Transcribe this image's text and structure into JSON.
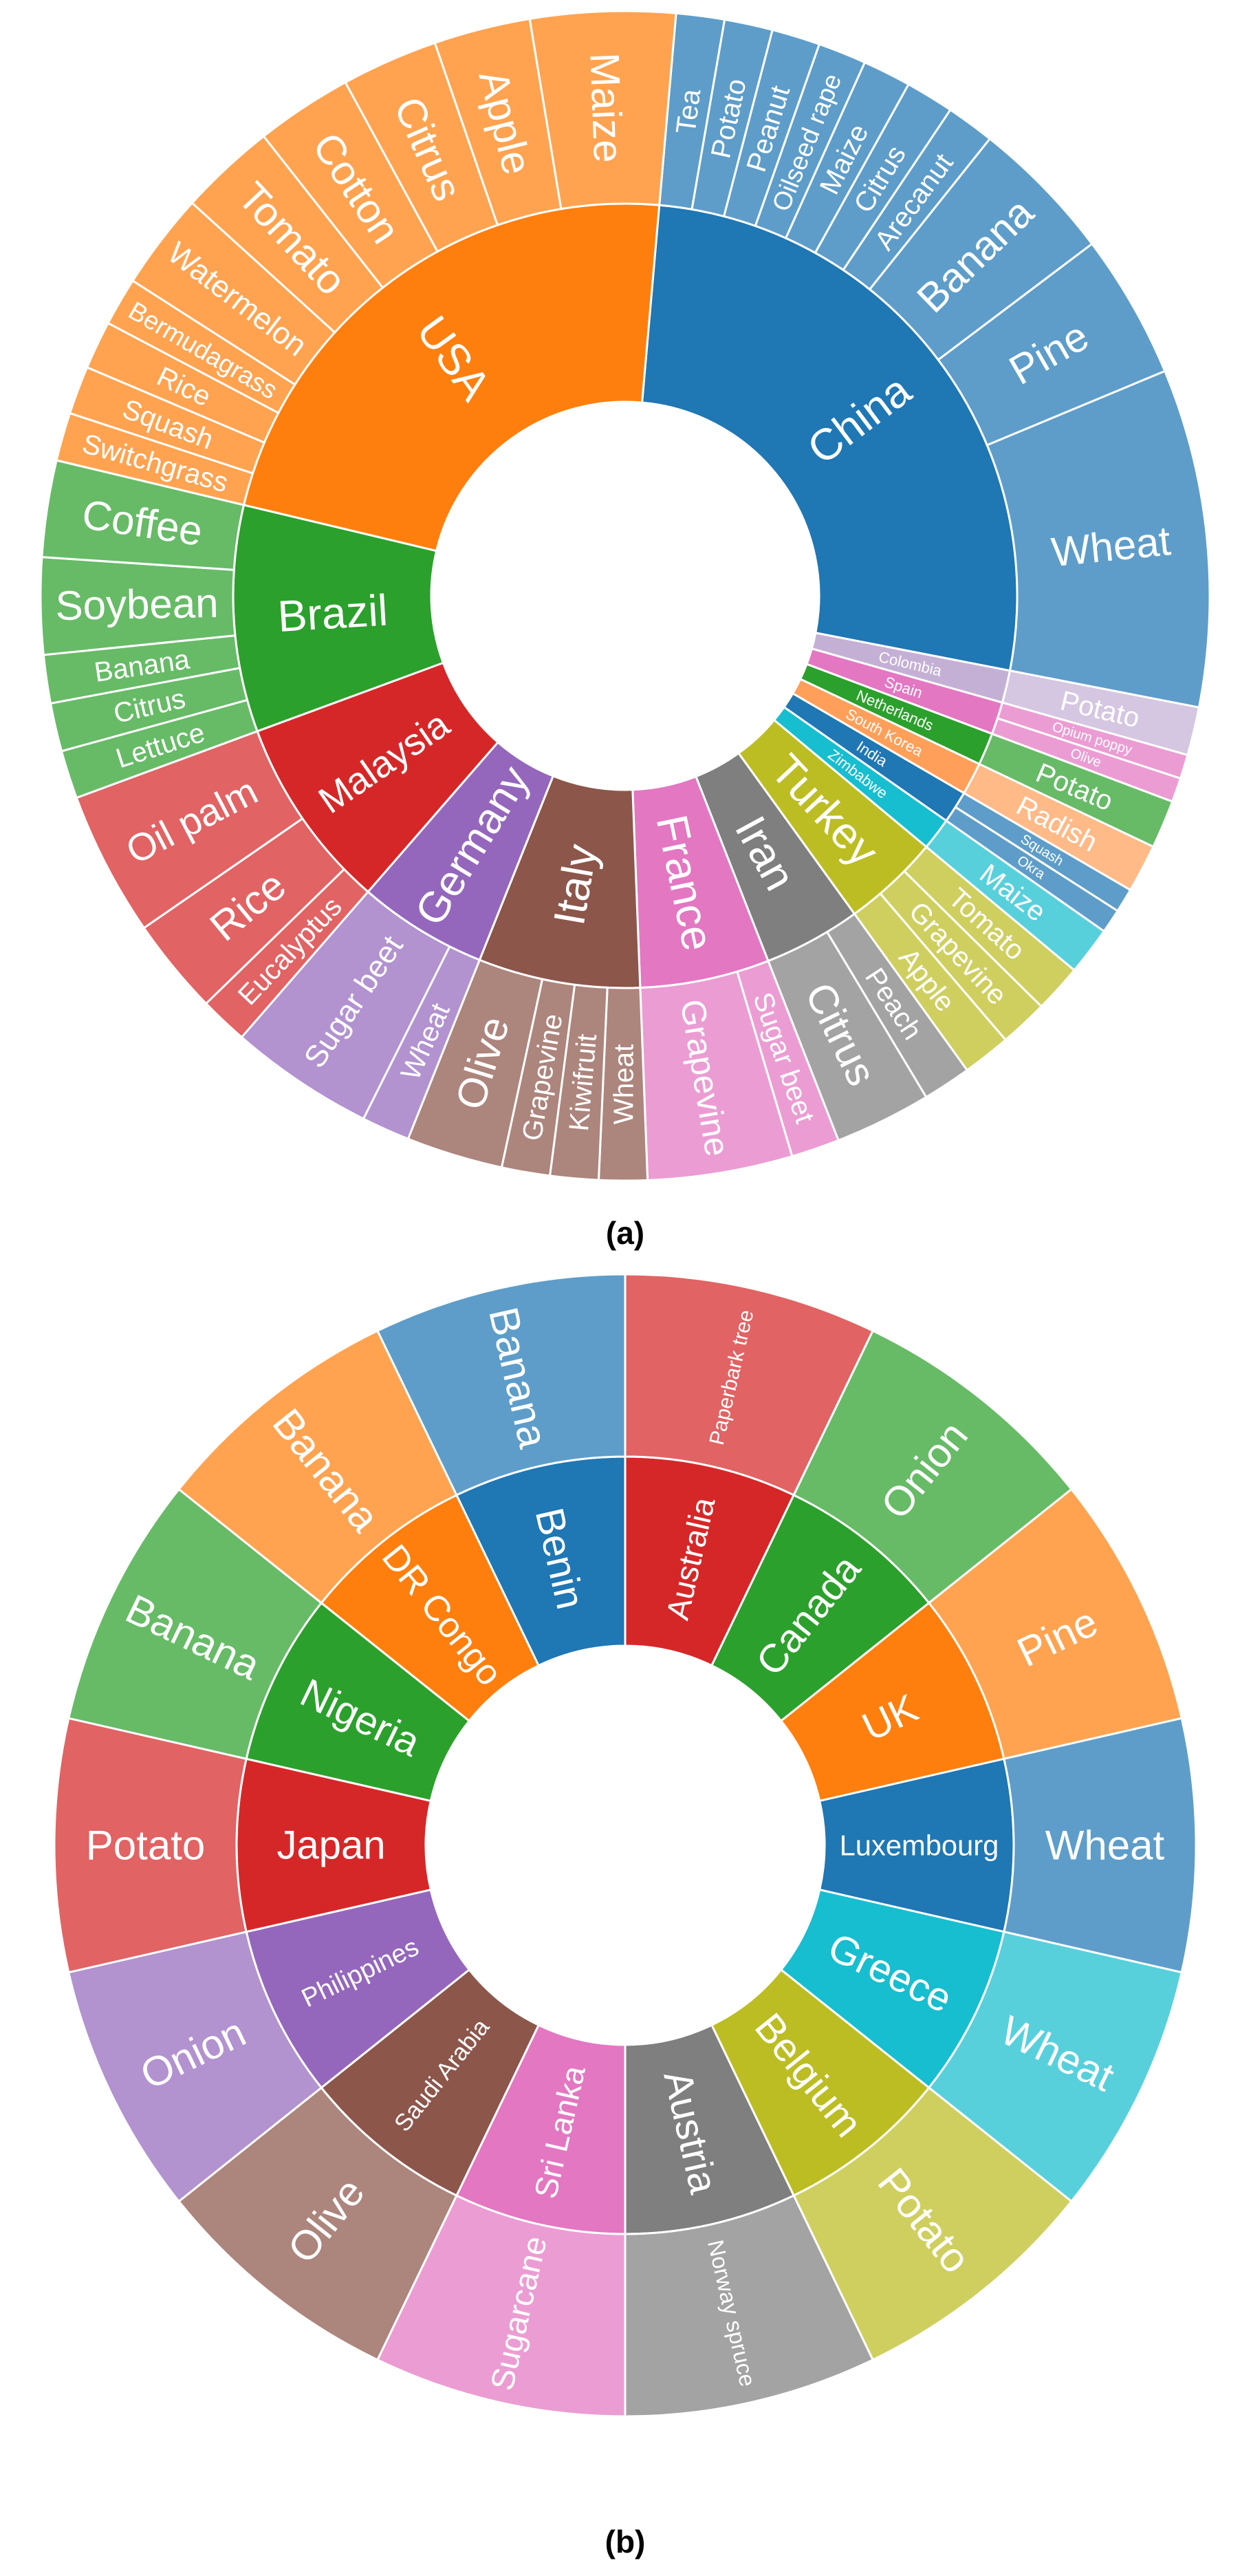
{
  "chart_data": [
    {
      "type": "sunburst",
      "panel_label": "(a)",
      "start_deg": 85,
      "countries": [
        {
          "name": "China",
          "color": "#1f77b4",
          "children": [
            {
              "name": "Tea",
              "value": 1
            },
            {
              "name": "Potato",
              "value": 1
            },
            {
              "name": "Peanut",
              "value": 1
            },
            {
              "name": "Oilseed rape",
              "value": 1
            },
            {
              "name": "Maize",
              "value": 1
            },
            {
              "name": "Citrus",
              "value": 1
            },
            {
              "name": "Arecanut",
              "value": 1
            },
            {
              "name": "Banana",
              "value": 3
            },
            {
              "name": "Pine",
              "value": 3
            },
            {
              "name": "Wheat",
              "value": 7
            }
          ]
        },
        {
          "name": "Colombia",
          "color": "#c5b0d5",
          "children": [
            {
              "name": "Potato",
              "value": 1
            }
          ]
        },
        {
          "name": "Spain",
          "color": "#e377c2",
          "alt_color": "#d62728",
          "children": [
            {
              "name": "Opium poppy",
              "value": 0.5
            },
            {
              "name": "Olive",
              "value": 0.5
            }
          ]
        },
        {
          "name": "Netherlands",
          "color": "#2ca02c",
          "children": [
            {
              "name": "Potato",
              "value": 1
            }
          ]
        },
        {
          "name": "South Korea",
          "color": "#ff9f5a",
          "children": [
            {
              "name": "Radish",
              "value": 1
            }
          ]
        },
        {
          "name": "India",
          "color": "#1f77b4",
          "children": [
            {
              "name": "Squash",
              "value": 0.5
            },
            {
              "name": "Okra",
              "value": 0.5
            }
          ]
        },
        {
          "name": "Zimbabwe",
          "color": "#17becf",
          "children": [
            {
              "name": "Maize",
              "value": 1
            }
          ]
        },
        {
          "name": "Turkey",
          "color": "#bcbd22",
          "children": [
            {
              "name": "Tomato",
              "value": 1
            },
            {
              "name": "Grapevine",
              "value": 1
            },
            {
              "name": "Apple",
              "value": 1
            }
          ]
        },
        {
          "name": "Iran",
          "color": "#7f7f7f",
          "children": [
            {
              "name": "Peach",
              "value": 1
            },
            {
              "name": "Citrus",
              "value": 2
            }
          ]
        },
        {
          "name": "France",
          "color": "#e377c2",
          "children": [
            {
              "name": "Sugar beet",
              "value": 1
            },
            {
              "name": "Grapevine",
              "value": 3
            }
          ]
        },
        {
          "name": "Italy",
          "color": "#8c564b",
          "children": [
            {
              "name": "Wheat",
              "value": 1
            },
            {
              "name": "Kiwifruit",
              "value": 1
            },
            {
              "name": "Grapevine",
              "value": 1
            },
            {
              "name": "Olive",
              "value": 2
            }
          ]
        },
        {
          "name": "Germany",
          "color": "#9467bd",
          "children": [
            {
              "name": "Wheat",
              "value": 1
            },
            {
              "name": "Sugar beet",
              "value": 3
            }
          ]
        },
        {
          "name": "Malaysia",
          "color": "#d62728",
          "children": [
            {
              "name": "Eucalyptus",
              "value": 1
            },
            {
              "name": "Rice",
              "value": 2
            },
            {
              "name": "Oil palm",
              "value": 3
            }
          ]
        },
        {
          "name": "Brazil",
          "color": "#2ca02c",
          "children": [
            {
              "name": "Lettuce",
              "value": 1
            },
            {
              "name": "Citrus",
              "value": 1
            },
            {
              "name": "Banana",
              "value": 1
            },
            {
              "name": "Soybean",
              "value": 2
            },
            {
              "name": "Coffee",
              "value": 2
            }
          ]
        },
        {
          "name": "USA",
          "color": "#ff7f0e",
          "children": [
            {
              "name": "Switchgrass",
              "value": 1
            },
            {
              "name": "Squash",
              "value": 1
            },
            {
              "name": "Rice",
              "value": 1
            },
            {
              "name": "Bermudagrass",
              "value": 1
            },
            {
              "name": "Watermelon",
              "value": 2
            },
            {
              "name": "Tomato",
              "value": 2
            },
            {
              "name": "Cotton",
              "value": 2
            },
            {
              "name": "Citrus",
              "value": 2
            },
            {
              "name": "Apple",
              "value": 2
            },
            {
              "name": "Maize",
              "value": 3
            }
          ]
        }
      ]
    },
    {
      "type": "sunburst",
      "panel_label": "(b)",
      "start_deg": 90,
      "countries": [
        {
          "name": "Australia",
          "color": "#d62728",
          "children": [
            {
              "name": "Paperbark tree",
              "value": 1
            }
          ]
        },
        {
          "name": "Canada",
          "color": "#2ca02c",
          "children": [
            {
              "name": "Onion",
              "value": 1
            }
          ]
        },
        {
          "name": "UK",
          "color": "#ff7f0e",
          "children": [
            {
              "name": "Pine",
              "value": 1
            }
          ]
        },
        {
          "name": "Luxembourg",
          "color": "#1f77b4",
          "children": [
            {
              "name": "Wheat",
              "value": 1
            }
          ]
        },
        {
          "name": "Greece",
          "color": "#17becf",
          "children": [
            {
              "name": "Wheat",
              "value": 1
            }
          ]
        },
        {
          "name": "Belgium",
          "color": "#bcbd22",
          "children": [
            {
              "name": "Potato",
              "value": 1
            }
          ]
        },
        {
          "name": "Austria",
          "color": "#7f7f7f",
          "children": [
            {
              "name": "Norway spruce",
              "value": 1
            }
          ]
        },
        {
          "name": "Sri Lanka",
          "color": "#e377c2",
          "children": [
            {
              "name": "Sugarcane",
              "value": 1
            }
          ]
        },
        {
          "name": "Saudi Arabia",
          "color": "#8c564b",
          "children": [
            {
              "name": "Olive",
              "value": 1
            }
          ]
        },
        {
          "name": "Philippines",
          "color": "#9467bd",
          "children": [
            {
              "name": "Onion",
              "value": 1
            }
          ]
        },
        {
          "name": "Japan",
          "color": "#d62728",
          "children": [
            {
              "name": "Potato",
              "value": 1
            }
          ]
        },
        {
          "name": "Nigeria",
          "color": "#2ca02c",
          "children": [
            {
              "name": "Banana",
              "value": 1
            }
          ]
        },
        {
          "name": "DR Congo",
          "color": "#ff7f0e",
          "children": [
            {
              "name": "Banana",
              "value": 1
            }
          ]
        },
        {
          "name": "Benin",
          "color": "#1f77b4",
          "children": [
            {
              "name": "Banana",
              "value": 1
            }
          ]
        }
      ]
    }
  ]
}
